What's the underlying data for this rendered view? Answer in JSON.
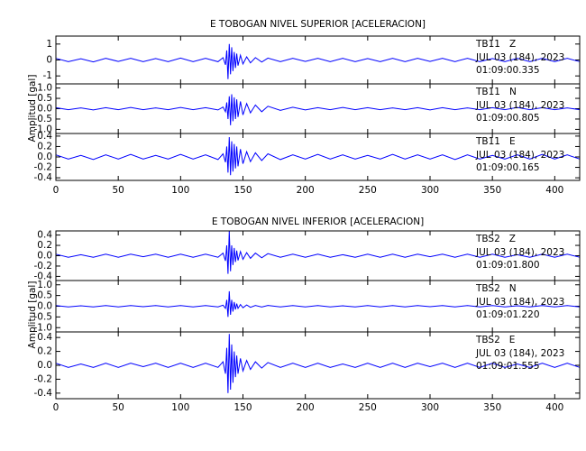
{
  "chart_data": [
    {
      "type": "line",
      "title": "E TOBOGAN NIVEL SUPERIOR [ACELERACION]",
      "y_label": "Amplitud [gal]",
      "xlim": [
        0,
        420
      ],
      "xticks": [
        0,
        50,
        100,
        150,
        200,
        250,
        300,
        350,
        400
      ],
      "x": [
        0,
        10,
        20,
        30,
        40,
        50,
        60,
        70,
        80,
        90,
        100,
        110,
        120,
        130,
        134,
        136,
        137,
        138,
        139,
        140,
        141,
        142,
        143,
        144,
        145,
        146,
        148,
        150,
        153,
        156,
        160,
        165,
        170,
        180,
        190,
        200,
        210,
        220,
        230,
        240,
        250,
        260,
        270,
        280,
        290,
        300,
        310,
        320,
        330,
        340,
        350,
        360,
        370,
        380,
        390,
        400,
        410,
        420
      ],
      "panels": [
        {
          "ylim": [
            -1.5,
            1.5
          ],
          "yticks": [
            -1,
            0,
            1
          ],
          "series": [
            {
              "name": "TB11   Z",
              "color": "#0000ff",
              "values": [
                0.1,
                -0.1,
                0.08,
                -0.12,
                0.1,
                -0.09,
                0.11,
                -0.1,
                0.09,
                -0.1,
                0.12,
                -0.1,
                0.1,
                -0.11,
                0.15,
                -0.3,
                0.6,
                -1.2,
                1.0,
                -0.9,
                0.8,
                -0.7,
                0.5,
                -0.5,
                0.4,
                -0.35,
                0.3,
                -0.25,
                0.2,
                -0.18,
                0.15,
                -0.13,
                0.12,
                -0.1,
                0.1,
                -0.09,
                0.11,
                -0.1,
                0.1,
                -0.1,
                0.09,
                -0.1,
                0.11,
                -0.1,
                0.1,
                -0.09,
                0.1,
                -0.1,
                0.11,
                -0.1,
                0.09,
                -0.1,
                0.1,
                -0.1,
                0.1,
                -0.11,
                0.1,
                -0.1
              ]
            }
          ],
          "annotations": [
            "JUL 03 (184), 2023",
            "01:09:00.335"
          ]
        },
        {
          "ylim": [
            -1.2,
            1.2
          ],
          "yticks": [
            {
              "value": -1,
              "label": "-1.0"
            },
            {
              "value": -0.5,
              "label": "-0.5"
            },
            {
              "value": 0,
              "label": "0.0"
            },
            {
              "value": 0.5,
              "label": "0.5"
            },
            {
              "value": 1,
              "label": "1.0"
            }
          ],
          "series": [
            {
              "name": "TB11   N",
              "color": "#0000ff",
              "values": [
                0.05,
                -0.05,
                0.04,
                -0.06,
                0.05,
                -0.05,
                0.06,
                -0.05,
                0.04,
                -0.05,
                0.06,
                -0.05,
                0.05,
                -0.06,
                0.08,
                -0.15,
                0.3,
                -0.5,
                0.6,
                -0.8,
                0.7,
                -0.6,
                0.55,
                -0.5,
                0.45,
                -0.4,
                0.35,
                -0.3,
                0.25,
                -0.2,
                0.18,
                -0.15,
                0.12,
                -0.08,
                0.07,
                -0.06,
                0.05,
                -0.05,
                0.06,
                -0.05,
                0.05,
                -0.05,
                0.04,
                -0.05,
                0.05,
                -0.06,
                0.05,
                -0.05,
                0.04,
                -0.05,
                0.05,
                -0.05,
                0.06,
                -0.05,
                0.05,
                -0.05,
                0.04,
                -0.05
              ]
            }
          ],
          "annotations": [
            "JUL 03 (184), 2023",
            "01:09:00.805"
          ]
        },
        {
          "ylim": [
            -0.45,
            0.45
          ],
          "yticks": [
            {
              "value": -0.4,
              "label": "-0.4"
            },
            {
              "value": -0.2,
              "label": "-0.2"
            },
            {
              "value": 0,
              "label": "0.0"
            },
            {
              "value": 0.2,
              "label": "0.2"
            },
            {
              "value": 0.4,
              "label": "0.4"
            }
          ],
          "series": [
            {
              "name": "TB11   E",
              "color": "#0000ff",
              "values": [
                0.04,
                -0.04,
                0.03,
                -0.05,
                0.04,
                -0.04,
                0.05,
                -0.04,
                0.03,
                -0.04,
                0.05,
                -0.04,
                0.04,
                -0.05,
                0.06,
                -0.1,
                0.2,
                -0.3,
                0.38,
                -0.35,
                0.3,
                -0.28,
                0.25,
                -0.22,
                0.2,
                -0.18,
                0.15,
                -0.13,
                0.1,
                -0.09,
                0.08,
                -0.07,
                0.06,
                -0.05,
                0.04,
                -0.04,
                0.05,
                -0.04,
                0.04,
                -0.04,
                0.03,
                -0.04,
                0.05,
                -0.04,
                0.04,
                -0.04,
                0.04,
                -0.05,
                0.04,
                -0.04,
                0.03,
                -0.04,
                0.04,
                -0.04,
                0.05,
                -0.04,
                0.04,
                -0.04
              ]
            }
          ],
          "annotations": [
            "JUL 03 (184), 2023",
            "01:09:00.165"
          ]
        }
      ]
    },
    {
      "type": "line",
      "title": "E TOBOGAN NIVEL INFERIOR [ACELERACION]",
      "y_label": "Amplitud [gal]",
      "xlim": [
        0,
        420
      ],
      "xticks": [
        0,
        50,
        100,
        150,
        200,
        250,
        300,
        350,
        400
      ],
      "x": [
        0,
        10,
        20,
        30,
        40,
        50,
        60,
        70,
        80,
        90,
        100,
        110,
        120,
        130,
        134,
        136,
        137,
        138,
        139,
        140,
        141,
        142,
        143,
        144,
        145,
        146,
        148,
        150,
        153,
        156,
        160,
        165,
        170,
        180,
        190,
        200,
        210,
        220,
        230,
        240,
        250,
        260,
        270,
        280,
        290,
        300,
        310,
        320,
        330,
        340,
        350,
        360,
        370,
        380,
        390,
        400,
        410,
        420
      ],
      "panels": [
        {
          "ylim": [
            -0.48,
            0.48
          ],
          "yticks": [
            {
              "value": -0.4,
              "label": "-0.4"
            },
            {
              "value": -0.2,
              "label": "-0.2"
            },
            {
              "value": 0,
              "label": "0.0"
            },
            {
              "value": 0.2,
              "label": "0.2"
            },
            {
              "value": 0.4,
              "label": "0.4"
            }
          ],
          "series": [
            {
              "name": "TBS2   Z",
              "color": "#0000ff",
              "values": [
                0.03,
                -0.03,
                0.02,
                -0.03,
                0.03,
                -0.03,
                0.03,
                -0.02,
                0.03,
                -0.03,
                0.03,
                -0.03,
                0.03,
                -0.03,
                0.05,
                -0.1,
                0.2,
                -0.35,
                0.48,
                -0.3,
                0.2,
                -0.18,
                0.15,
                -0.12,
                0.1,
                -0.09,
                0.08,
                -0.07,
                0.06,
                -0.05,
                0.05,
                -0.04,
                0.04,
                -0.03,
                0.03,
                -0.03,
                0.03,
                -0.03,
                0.02,
                -0.03,
                0.03,
                -0.03,
                0.03,
                -0.03,
                0.03,
                -0.02,
                0.03,
                -0.03,
                0.03,
                -0.03,
                0.03,
                -0.03,
                0.02,
                -0.03,
                0.03,
                -0.03,
                0.03,
                -0.03
              ]
            }
          ],
          "annotations": [
            "JUL 03 (184), 2023",
            "01:09:01.800"
          ]
        },
        {
          "ylim": [
            -1.2,
            1.2
          ],
          "yticks": [
            {
              "value": -1,
              "label": "-1.0"
            },
            {
              "value": -0.5,
              "label": "-0.5"
            },
            {
              "value": 0,
              "label": "0.0"
            },
            {
              "value": 0.5,
              "label": "0.5"
            },
            {
              "value": 1,
              "label": "1.0"
            }
          ],
          "series": [
            {
              "name": "TBS2   N",
              "color": "#0000ff",
              "values": [
                0.03,
                -0.03,
                0.02,
                -0.03,
                0.03,
                -0.03,
                0.03,
                -0.02,
                0.03,
                -0.03,
                0.03,
                -0.03,
                0.03,
                -0.03,
                0.05,
                -0.1,
                0.3,
                -0.5,
                0.7,
                -0.4,
                0.3,
                -0.25,
                0.2,
                -0.15,
                0.12,
                -0.1,
                0.08,
                -0.07,
                0.06,
                -0.05,
                0.04,
                -0.04,
                0.04,
                -0.03,
                0.03,
                -0.03,
                0.03,
                -0.03,
                0.02,
                -0.03,
                0.03,
                -0.03,
                0.03,
                -0.03,
                0.03,
                -0.02,
                0.03,
                -0.03,
                0.03,
                -0.03,
                0.03,
                -0.03,
                0.02,
                -0.03,
                0.03,
                -0.03,
                0.03,
                -0.03
              ]
            }
          ],
          "annotations": [
            "JUL 03 (184), 2023",
            "01:09:01.220"
          ]
        },
        {
          "ylim": [
            -0.48,
            0.48
          ],
          "yticks": [
            {
              "value": -0.4,
              "label": "-0.4"
            },
            {
              "value": -0.2,
              "label": "-0.2"
            },
            {
              "value": 0,
              "label": "0.0"
            },
            {
              "value": 0.2,
              "label": "0.2"
            },
            {
              "value": 0.4,
              "label": "0.4"
            }
          ],
          "series": [
            {
              "name": "TBS2   E",
              "color": "#0000ff",
              "values": [
                0.03,
                -0.03,
                0.02,
                -0.03,
                0.03,
                -0.03,
                0.03,
                -0.02,
                0.03,
                -0.03,
                0.03,
                -0.03,
                0.03,
                -0.03,
                0.05,
                -0.12,
                0.25,
                -0.4,
                0.45,
                -0.35,
                0.3,
                -0.25,
                0.2,
                -0.17,
                0.14,
                -0.12,
                0.1,
                -0.08,
                0.07,
                -0.06,
                0.05,
                -0.04,
                0.04,
                -0.03,
                0.03,
                -0.03,
                0.03,
                -0.03,
                0.02,
                -0.03,
                0.03,
                -0.03,
                0.03,
                -0.03,
                0.03,
                -0.02,
                0.03,
                -0.03,
                0.03,
                -0.03,
                0.03,
                -0.03,
                0.02,
                -0.03,
                0.03,
                -0.03,
                0.03,
                -0.03
              ]
            }
          ],
          "annotations": [
            "JUL 03 (184), 2023",
            "01:09:01.555"
          ]
        }
      ]
    }
  ]
}
